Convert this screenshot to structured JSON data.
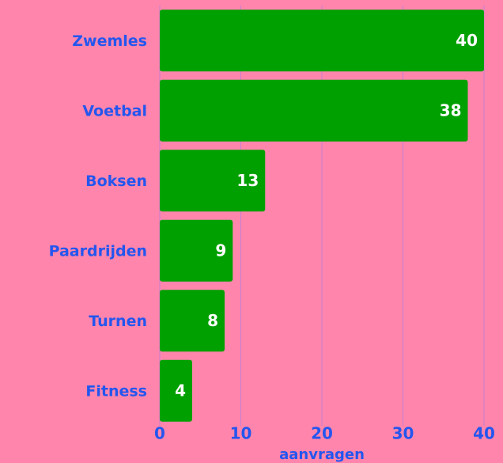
{
  "chart_data": {
    "type": "bar",
    "orientation": "horizontal",
    "categories": [
      "Zwemles",
      "Voetbal",
      "Boksen",
      "Paardrijden",
      "Turnen",
      "Fitness"
    ],
    "values": [
      40,
      38,
      13,
      9,
      8,
      4
    ],
    "color": "#00a000",
    "xlabel": "aanvragen",
    "xlim": [
      0,
      40
    ],
    "xticks": [
      0,
      10,
      20,
      30,
      40
    ],
    "grid": true
  }
}
